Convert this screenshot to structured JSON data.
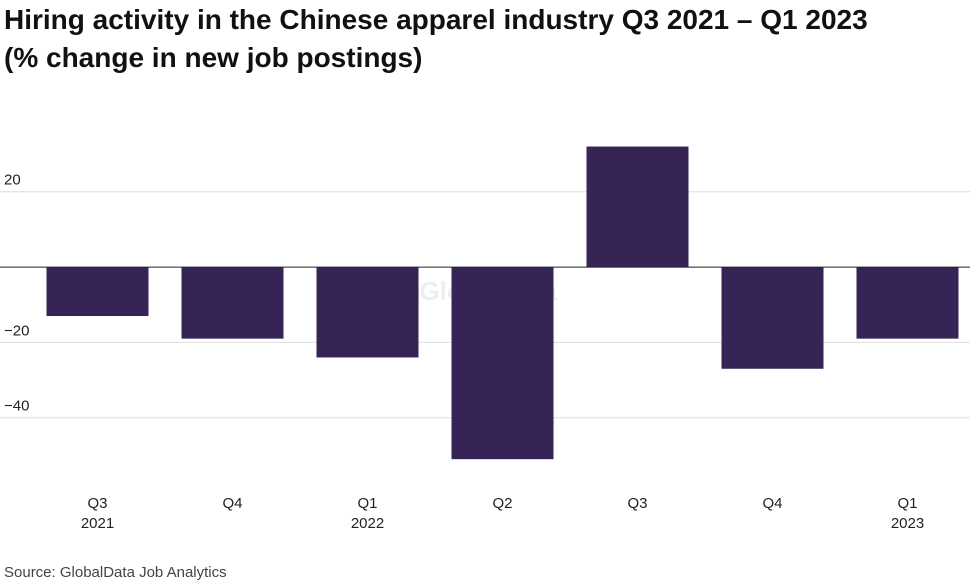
{
  "chart_data": {
    "type": "bar",
    "title": "Hiring activity in the Chinese apparel industry Q3 2021 – Q1 2023",
    "subtitle": "(% change in new job postings)",
    "categories": [
      "Q3\n2021",
      "Q4",
      "Q1\n2022",
      "Q2",
      "Q3",
      "Q4",
      "Q1\n2023"
    ],
    "values": [
      -13,
      -19,
      -24,
      -51,
      32,
      -27,
      -19
    ],
    "color": "#352455",
    "ylim": [
      -56,
      34
    ],
    "yticks": [
      20,
      {
        "value": -20,
        "label": "−20"
      },
      {
        "value": -40,
        "label": "−40"
      }
    ],
    "grid": true,
    "watermark": "GlobalData",
    "source": "Source: GlobalData Job Analytics"
  }
}
